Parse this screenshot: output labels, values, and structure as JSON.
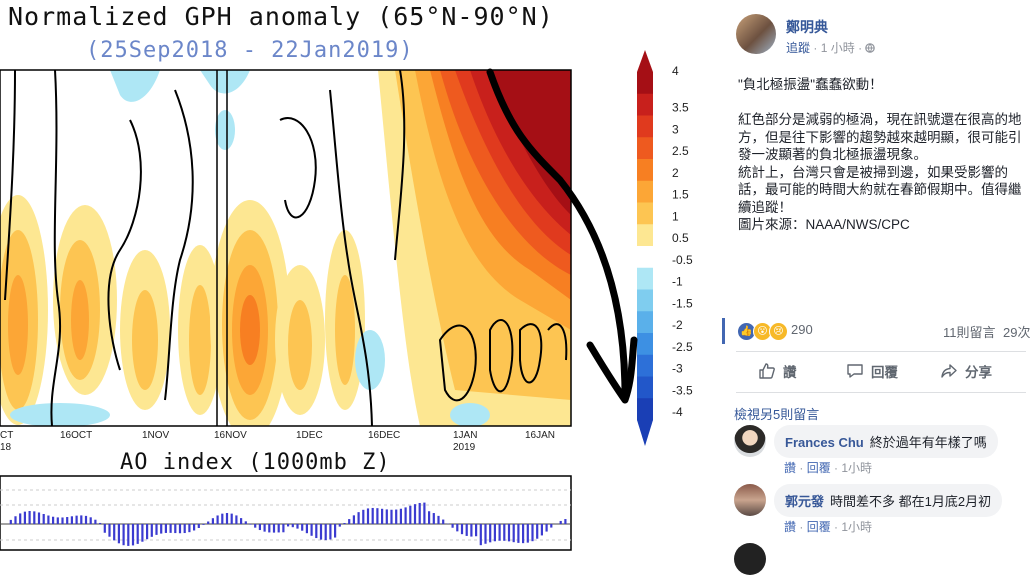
{
  "chart": {
    "title": "Normalized GPH anomaly (65°N-90°N)",
    "subtitle": "(25Sep2018 - 22Jan2019)",
    "ao_title": "AO index (1000mb Z)",
    "x_tick_labels": [
      "CT",
      "16OCT",
      "1NOV",
      "16NOV",
      "1DEC",
      "16DEC",
      "1JAN",
      "16JAN"
    ],
    "x_tick_sublabels": [
      "18",
      "2019"
    ],
    "colorbar_labels": [
      "4",
      "3.5",
      "3",
      "2.5",
      "2",
      "1.5",
      "1",
      "0.5",
      "-0.5",
      "-1",
      "-1.5",
      "-2",
      "-2.5",
      "-3",
      "-3.5",
      "-4"
    ],
    "colorbar_colors": [
      "#a50f15",
      "#c8201c",
      "#e03a1e",
      "#ee5a1f",
      "#f77f22",
      "#fca636",
      "#fdc552",
      "#fde792",
      "#ffffff",
      "#aee7f5",
      "#7fcdef",
      "#5ab0ea",
      "#3d90e3",
      "#2d70d8",
      "#2257c9",
      "#1a3fb5"
    ],
    "arrow_color": "#000000"
  },
  "post": {
    "author": "鄭明典",
    "follow": "追蹤",
    "time": "1 小時",
    "separator": "·",
    "globe_icon": "globe-icon",
    "text": "\"負北極振盪\"蠢蠢欲動！\n\n紅色部分是減弱的極渦，現在訊號還在很高的地\n方，但是往下影響的趨勢越來越明顯，很可能引\n發一波顯著的負北極振盪現象。\n統計上，台灣只會是被掃到邊，如果受影響的\n話，最可能的時間大約就在春節假期中。值得繼\n續追蹤！\n圖片來源：NAAA/NWS/CPC",
    "reaction_count": "290",
    "comment_count": "11則留言",
    "share_count": "29次",
    "actions": {
      "like": "讚",
      "comment": "回覆",
      "share": "分享"
    },
    "view_more": "檢視另5則留言",
    "comments": [
      {
        "name": "Frances Chu",
        "text": "終於過年有年樣了嗎",
        "like": "讚",
        "reply": "回覆",
        "time": "1小時"
      },
      {
        "name": "郭元發",
        "text": "時間差不多 都在1月底2月初",
        "like": "讚",
        "reply": "回覆",
        "time": "1小時"
      }
    ],
    "colors": {
      "link": "#365899",
      "accent": "#4267b2"
    }
  }
}
